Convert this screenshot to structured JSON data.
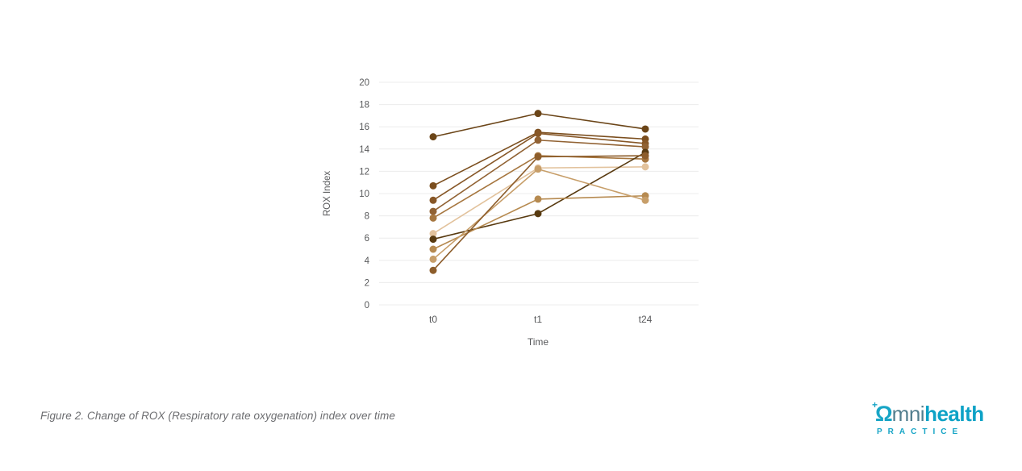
{
  "caption": "Figure 2. Change of ROX (Respiratory rate oxygenation) index over time",
  "logo": {
    "plus": "+",
    "mark": "Ω",
    "rest": "mni",
    "bold": "health",
    "tagline": "PRACTICE"
  },
  "chart_data": {
    "type": "line",
    "title": "",
    "xlabel": "Time",
    "ylabel": "ROX Index",
    "categories": [
      "t0",
      "t1",
      "t24"
    ],
    "ylim": [
      0,
      20
    ],
    "yticks": [
      0,
      2,
      4,
      6,
      8,
      10,
      12,
      14,
      16,
      18,
      20
    ],
    "grid": "horizontal",
    "legend": "none",
    "grid_color": "#ececec",
    "tick_color": "#58595b",
    "series": [
      {
        "name": "s1",
        "color": "#6b4518",
        "values": [
          15.1,
          17.2,
          15.8
        ]
      },
      {
        "name": "s2",
        "color": "#7b4e1e",
        "values": [
          10.7,
          15.5,
          14.9
        ]
      },
      {
        "name": "s3",
        "color": "#875727",
        "values": [
          9.4,
          15.4,
          14.5
        ]
      },
      {
        "name": "s4",
        "color": "#916233",
        "values": [
          8.4,
          14.8,
          14.2
        ]
      },
      {
        "name": "s5",
        "color": "#a6763f",
        "values": [
          7.8,
          13.4,
          13.1
        ]
      },
      {
        "name": "s6",
        "color": "#e2c29c",
        "values": [
          6.4,
          12.3,
          12.4
        ]
      },
      {
        "name": "s7",
        "color": "#583a10",
        "values": [
          5.9,
          8.2,
          13.7
        ]
      },
      {
        "name": "s8",
        "color": "#b68a50",
        "values": [
          5.0,
          9.5,
          9.8
        ]
      },
      {
        "name": "s9",
        "color": "#c79e69",
        "values": [
          4.1,
          12.2,
          9.4
        ]
      },
      {
        "name": "s10",
        "color": "#8d5d2b",
        "values": [
          3.1,
          13.3,
          13.4
        ]
      }
    ]
  }
}
